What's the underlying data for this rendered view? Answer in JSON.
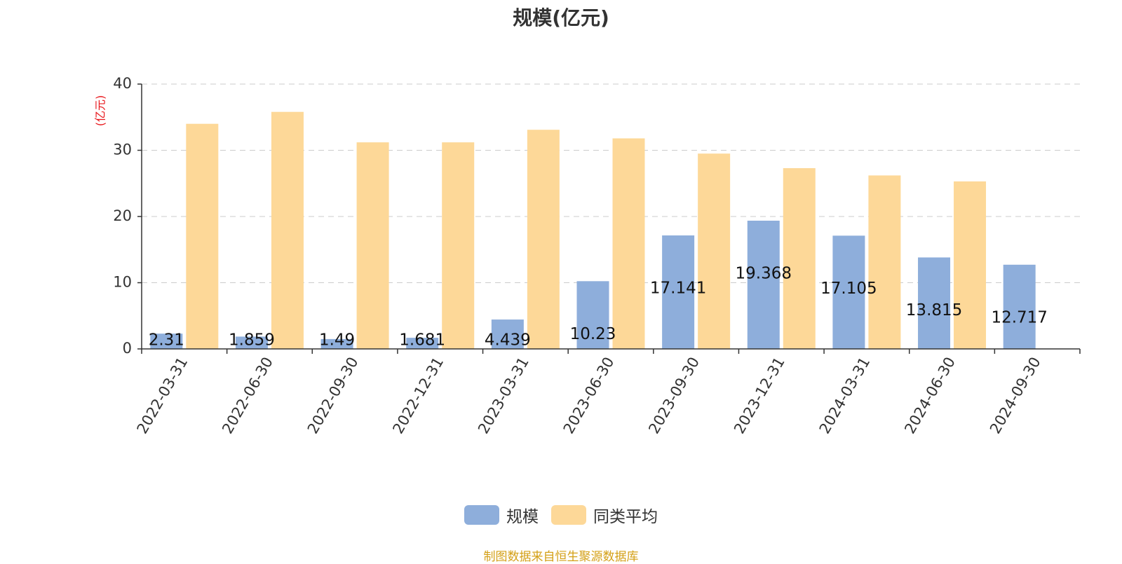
{
  "title": "规模(亿元)",
  "source_note": "制图数据来自恒生聚源数据库",
  "colors": {
    "series_1": "#8eaedb",
    "series_2": "#fdd898",
    "unit_label": "#e8161b",
    "source_note": "#d4a017",
    "axis": "#333333",
    "grid": "#cccccc"
  },
  "chart_data": {
    "type": "bar",
    "title": "规模(亿元)",
    "ylabel": "(亿元)",
    "xlabel": "",
    "ylim": [
      0,
      40
    ],
    "yticks": [
      0,
      10,
      20,
      30,
      40
    ],
    "grid": true,
    "legend_position": "bottom-center",
    "categories": [
      "2022-03-31",
      "2022-06-30",
      "2022-09-30",
      "2022-12-31",
      "2023-03-31",
      "2023-06-30",
      "2023-09-30",
      "2023-12-31",
      "2024-03-31",
      "2024-06-30",
      "2024-09-30"
    ],
    "series": [
      {
        "name": "规模",
        "values": [
          2.31,
          1.859,
          1.49,
          1.681,
          4.439,
          10.23,
          17.141,
          19.368,
          17.105,
          13.815,
          12.717
        ],
        "labels": [
          "2.31",
          "1.859",
          "1.49",
          "1.681",
          "4.439",
          "10.23",
          "17.141",
          "19.368",
          "17.105",
          "13.815",
          "12.717"
        ]
      },
      {
        "name": "同类平均",
        "values": [
          34.0,
          35.8,
          31.2,
          31.2,
          33.1,
          31.8,
          29.5,
          27.3,
          26.2,
          25.3,
          null
        ]
      }
    ]
  }
}
